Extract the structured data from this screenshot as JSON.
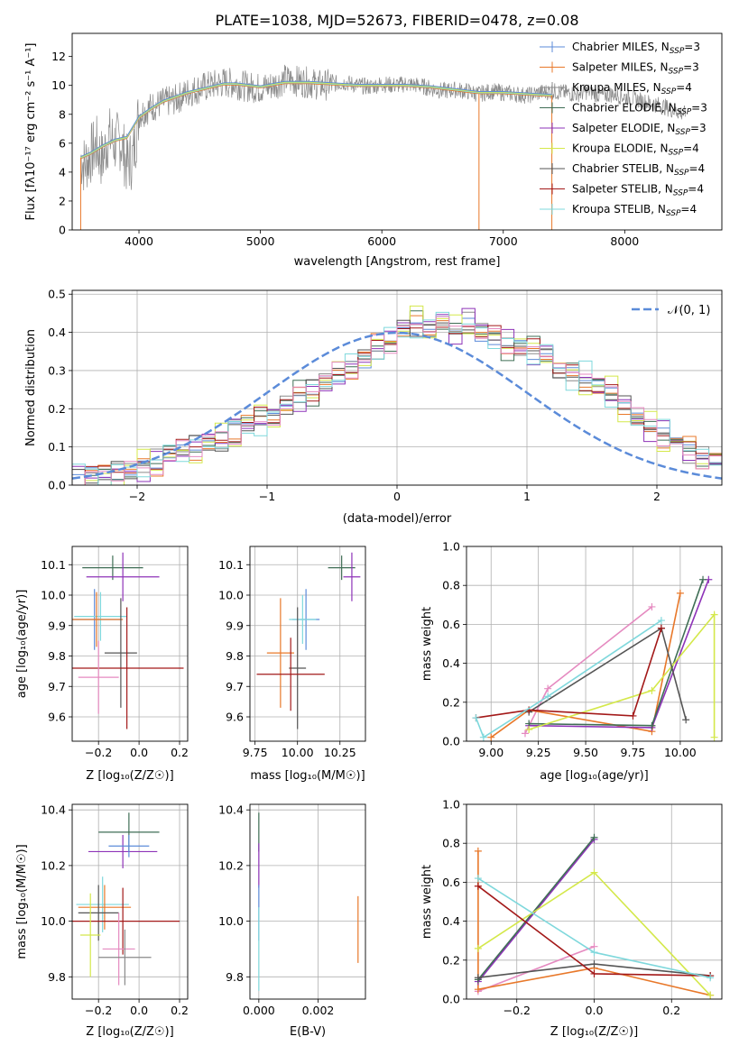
{
  "figure_title": "PLATE=1038, MJD=52673, FIBERID=0478, z=0.08",
  "colors": {
    "Chabrier MILES": "#5b8bd9",
    "Salpeter MILES": "#e8782a",
    "Kroupa MILES": "#8a8a8a",
    "Chabrier ELODIE": "#3f6e55",
    "Salpeter ELODIE": "#8e33b8",
    "Kroupa ELODIE": "#d4e84a",
    "Chabrier STELIB": "#555555",
    "Salpeter STELIB": "#a31919",
    "Kroupa STELIB": "#7fd8dc",
    "extra_pink": "#e58ac0",
    "gaussian": "#5b8bd9"
  },
  "chart_data": [
    {
      "id": "spectrum",
      "type": "line",
      "title": "PLATE=1038, MJD=52673, FIBERID=0478, z=0.08",
      "xlabel": "wavelength [Angstrom, rest frame]",
      "ylabel": "Flux [f_λ 10^-17 erg cm^-2 s^-1 A^-1]",
      "xlim": [
        3450,
        8800
      ],
      "ylim": [
        0,
        13.6
      ],
      "xticks": [
        4000,
        5000,
        6000,
        7000,
        8000
      ],
      "yticks": [
        0,
        2,
        4,
        6,
        8,
        10,
        12
      ],
      "grid": false,
      "legend_position": "right",
      "legend": [
        "Chabrier MILES, N_SSP=3",
        "Salpeter MILES, N_SSP=3",
        "Kroupa MILES, N_SSP=4",
        "Chabrier ELODIE, N_SSP=3",
        "Salpeter ELODIE, N_SSP=3",
        "Kroupa ELODIE, N_SSP=4",
        "Chabrier STELIB, N_SSP=4",
        "Salpeter STELIB, N_SSP=4",
        "Kroupa STELIB, N_SSP=4"
      ],
      "series": [
        {
          "name": "observed spectrum",
          "x": [
            3520,
            3550,
            3600,
            3650,
            3700,
            3750,
            3800,
            3850,
            3900,
            3950,
            4000,
            4100,
            4200,
            4300,
            4400,
            4500,
            4600,
            4700,
            4800,
            4900,
            5000,
            5100,
            5200,
            5300,
            5400,
            5500,
            5600,
            5700,
            5800,
            5900,
            6000,
            6100,
            6200,
            6300,
            6400,
            6500,
            6600,
            6700,
            6800,
            6900,
            7000,
            7100,
            7200,
            7300,
            7400,
            7500,
            7600,
            7700,
            7800,
            7900,
            8000,
            8100,
            8200,
            8300,
            8400,
            8500
          ],
          "y": [
            5.0,
            4.5,
            5.2,
            5.8,
            4.8,
            6.5,
            6.0,
            6.2,
            4.5,
            5.0,
            8.0,
            8.5,
            8.8,
            9.0,
            9.5,
            9.8,
            10.0,
            10.2,
            10.1,
            9.9,
            9.8,
            10.0,
            10.4,
            10.3,
            10.2,
            10.0,
            10.1,
            10.2,
            10.0,
            9.9,
            10.1,
            10.0,
            10.1,
            10.0,
            9.8,
            9.6,
            9.7,
            9.6,
            9.4,
            9.6,
            9.5,
            9.4,
            9.3,
            9.5,
            9.6,
            9.5,
            9.4,
            9.6,
            9.3,
            9.4,
            9.2,
            9.0,
            8.8,
            8.6,
            8.3,
            8.0
          ]
        },
        {
          "name": "models",
          "x": [
            3520,
            3600,
            3700,
            3800,
            3900,
            4000,
            4100,
            4200,
            4300,
            4400,
            4500,
            4600,
            4700,
            4800,
            4900,
            5000,
            5200,
            5400,
            5600,
            5800,
            6000,
            6200,
            6400,
            6600,
            6800,
            7000,
            7200,
            7400
          ],
          "y": [
            5.0,
            5.3,
            5.8,
            6.2,
            6.4,
            7.8,
            8.4,
            8.9,
            9.2,
            9.5,
            9.7,
            9.9,
            10.1,
            10.1,
            10.0,
            9.9,
            10.2,
            10.2,
            10.1,
            10.0,
            10.0,
            10.0,
            9.9,
            9.7,
            9.5,
            9.5,
            9.4,
            9.3
          ]
        }
      ]
    },
    {
      "id": "residuals",
      "type": "histogram",
      "xlabel": "(data-model)/error",
      "ylabel": "Normed distribution",
      "xlim": [
        -2.5,
        2.5
      ],
      "ylim": [
        0,
        0.51
      ],
      "xticks": [
        -2,
        -1,
        0,
        1,
        2
      ],
      "yticks": [
        0.0,
        0.1,
        0.2,
        0.3,
        0.4,
        0.5
      ],
      "grid": true,
      "legend_position": "top-right",
      "legend": [
        "𝒩(0, 1)"
      ],
      "bin_width": 0.1,
      "bins_start": -2.5,
      "series_values": [
        0.02,
        0.025,
        0.03,
        0.035,
        0.04,
        0.05,
        0.06,
        0.08,
        0.09,
        0.1,
        0.11,
        0.12,
        0.14,
        0.16,
        0.17,
        0.19,
        0.21,
        0.23,
        0.25,
        0.27,
        0.29,
        0.31,
        0.33,
        0.36,
        0.38,
        0.41,
        0.42,
        0.4,
        0.43,
        0.41,
        0.42,
        0.4,
        0.39,
        0.37,
        0.36,
        0.35,
        0.33,
        0.3,
        0.29,
        0.28,
        0.26,
        0.24,
        0.21,
        0.18,
        0.15,
        0.13,
        0.11,
        0.09,
        0.07,
        0.06,
        0.04,
        0.035,
        0.03,
        0.025,
        0.02
      ],
      "gaussian": {
        "mean": 0,
        "sigma": 1
      }
    },
    {
      "id": "age_vs_Z",
      "type": "errorbar",
      "xlabel": "Z [log10(Z/Z⊙)]",
      "ylabel": "age [log10(age/yr)]",
      "xlim": [
        -0.33,
        0.24
      ],
      "ylim": [
        9.52,
        10.16
      ],
      "xticks": [
        -0.2,
        0.0,
        0.2
      ],
      "yticks": [
        9.6,
        9.7,
        9.8,
        9.9,
        10.0,
        10.1
      ],
      "grid": true,
      "points": [
        {
          "x": -0.13,
          "xerr": 0.15,
          "y": 10.09,
          "yerr": 0.04
        },
        {
          "x": -0.08,
          "xerr": 0.18,
          "y": 10.06,
          "yerr": 0.08
        },
        {
          "x": -0.22,
          "xerr": 0.13,
          "y": 9.92,
          "yerr": 0.1
        },
        {
          "x": -0.19,
          "xerr": 0.13,
          "y": 9.93,
          "yerr": 0.08
        },
        {
          "x": -0.21,
          "xerr": 0.13,
          "y": 9.92,
          "yerr": 0.09
        },
        {
          "x": -0.09,
          "xerr": 0.08,
          "y": 9.81,
          "yerr": 0.18
        },
        {
          "x": -0.06,
          "xerr": 0.28,
          "y": 9.76,
          "yerr": 0.2
        },
        {
          "x": -0.2,
          "xerr": 0.1,
          "y": 9.73,
          "yerr": 0.12
        }
      ]
    },
    {
      "id": "age_vs_mass",
      "type": "errorbar",
      "xlabel": "mass [log10(M/M⊙)]",
      "xlim": [
        9.72,
        10.4
      ],
      "ylim": [
        9.52,
        10.16
      ],
      "xticks": [
        9.75,
        10.0,
        10.25
      ],
      "yticks": [
        9.6,
        9.7,
        9.8,
        9.9,
        10.0,
        10.1
      ],
      "grid": true,
      "points": [
        {
          "x": 10.26,
          "xerr": 0.08,
          "y": 10.09,
          "yerr": 0.04
        },
        {
          "x": 10.32,
          "xerr": 0.05,
          "y": 10.06,
          "yerr": 0.08
        },
        {
          "x": 10.05,
          "xerr": 0.08,
          "y": 9.92,
          "yerr": 0.1
        },
        {
          "x": 10.03,
          "xerr": 0.08,
          "y": 9.92,
          "yerr": 0.08
        },
        {
          "x": 9.9,
          "xerr": 0.08,
          "y": 9.81,
          "yerr": 0.18
        },
        {
          "x": 10.0,
          "xerr": 0.05,
          "y": 9.76,
          "yerr": 0.2
        },
        {
          "x": 9.96,
          "xerr": 0.2,
          "y": 9.74,
          "yerr": 0.12
        }
      ]
    },
    {
      "id": "weight_vs_age",
      "type": "line",
      "xlabel": "age [log10(age/yr)]",
      "ylabel": "mass weight",
      "xlim": [
        8.87,
        10.22
      ],
      "ylim": [
        0.0,
        1.0
      ],
      "xticks": [
        9.0,
        9.25,
        9.5,
        9.75,
        10.0
      ],
      "yticks": [
        0.0,
        0.2,
        0.4,
        0.6,
        0.8,
        1.0
      ],
      "grid": true,
      "series": [
        {
          "x": [
            9.18,
            9.3,
            9.85
          ],
          "y": [
            0.04,
            0.27,
            0.69
          ]
        },
        {
          "x": [
            9.0,
            9.2,
            9.85,
            10.0
          ],
          "y": [
            0.02,
            0.16,
            0.05,
            0.76
          ]
        },
        {
          "x": [
            9.2,
            9.85,
            10.15
          ],
          "y": [
            0.08,
            0.07,
            0.83
          ]
        },
        {
          "x": [
            9.2,
            9.85,
            10.12
          ],
          "y": [
            0.09,
            0.08,
            0.83
          ]
        },
        {
          "x": [
            9.2,
            9.85,
            10.18,
            10.18
          ],
          "y": [
            0.06,
            0.26,
            0.65,
            0.02
          ]
        },
        {
          "x": [
            9.2,
            9.9,
            10.03
          ],
          "y": [
            0.15,
            0.58,
            0.11
          ]
        },
        {
          "x": [
            8.92,
            9.2,
            9.75,
            9.9
          ],
          "y": [
            0.12,
            0.16,
            0.13,
            0.58
          ]
        },
        {
          "x": [
            8.92,
            8.96,
            9.3,
            9.9
          ],
          "y": [
            0.12,
            0.02,
            0.23,
            0.62
          ]
        }
      ]
    },
    {
      "id": "mass_vs_Z",
      "type": "errorbar",
      "xlabel": "Z [log10(Z/Z⊙)]",
      "ylabel": "mass [log10(M/M⊙)]",
      "xlim": [
        -0.33,
        0.24
      ],
      "ylim": [
        9.72,
        10.42
      ],
      "xticks": [
        -0.2,
        0.0,
        0.2
      ],
      "yticks": [
        9.8,
        10.0,
        10.2,
        10.4
      ],
      "grid": true,
      "points": [
        {
          "x": -0.05,
          "xerr": 0.15,
          "y": 10.32,
          "yerr": 0.07
        },
        {
          "x": -0.08,
          "xerr": 0.17,
          "y": 10.25,
          "yerr": 0.06
        },
        {
          "x": -0.05,
          "xerr": 0.1,
          "y": 10.27,
          "yerr": 0.04
        },
        {
          "x": -0.18,
          "xerr": 0.13,
          "y": 10.06,
          "yerr": 0.1
        },
        {
          "x": -0.17,
          "xerr": 0.13,
          "y": 10.05,
          "yerr": 0.08
        },
        {
          "x": -0.2,
          "xerr": 0.1,
          "y": 10.03,
          "yerr": 0.1
        },
        {
          "x": -0.08,
          "xerr": 0.28,
          "y": 10.0,
          "yerr": 0.12
        },
        {
          "x": -0.1,
          "xerr": 0.08,
          "y": 9.9,
          "yerr": 0.13
        },
        {
          "x": -0.07,
          "xerr": 0.13,
          "y": 9.87,
          "yerr": 0.1
        },
        {
          "x": -0.24,
          "xerr": 0.05,
          "y": 9.95,
          "yerr": 0.15
        }
      ]
    },
    {
      "id": "mass_vs_EBV",
      "type": "errorbar",
      "xlabel": "E(B-V)",
      "xlim": [
        -0.0003,
        0.0036
      ],
      "ylim": [
        9.72,
        10.42
      ],
      "xticks": [
        0.0,
        0.002
      ],
      "yticks": [
        9.8,
        10.0,
        10.2,
        10.4
      ],
      "grid": true,
      "points": [
        {
          "x": 0.0,
          "y": 10.32,
          "yerr": 0.07
        },
        {
          "x": 0.0,
          "y": 10.2,
          "yerr": 0.08
        },
        {
          "x": 0.0,
          "y": 10.03,
          "yerr": 0.1
        },
        {
          "x": 0.0,
          "y": 9.9,
          "yerr": 0.15
        },
        {
          "x": 0.00335,
          "y": 9.97,
          "yerr": 0.12
        }
      ]
    },
    {
      "id": "weight_vs_Z",
      "type": "line",
      "xlabel": "Z [log10(Z/Z⊙)]",
      "ylabel": "mass weight",
      "xlim": [
        -0.33,
        0.33
      ],
      "ylim": [
        0.0,
        1.0
      ],
      "xticks": [
        -0.2,
        0.0,
        0.2
      ],
      "yticks": [
        0.0,
        0.2,
        0.4,
        0.6,
        0.8,
        1.0
      ],
      "grid": true,
      "series": [
        {
          "x": [
            -0.3,
            0.0
          ],
          "y": [
            0.04,
            0.27
          ]
        },
        {
          "x": [
            -0.3,
            -0.3,
            0.0,
            0.3
          ],
          "y": [
            0.76,
            0.05,
            0.16,
            0.02
          ]
        },
        {
          "x": [
            -0.3,
            0.0
          ],
          "y": [
            0.09,
            0.82
          ]
        },
        {
          "x": [
            -0.3,
            0.0
          ],
          "y": [
            0.1,
            0.83
          ]
        },
        {
          "x": [
            -0.3,
            0.0,
            0.3
          ],
          "y": [
            0.26,
            0.65,
            0.02
          ]
        },
        {
          "x": [
            -0.3,
            0.0,
            0.3
          ],
          "y": [
            0.11,
            0.18,
            0.12
          ]
        },
        {
          "x": [
            -0.3,
            0.0,
            0.3
          ],
          "y": [
            0.58,
            0.13,
            0.12
          ]
        },
        {
          "x": [
            -0.3,
            0.0,
            0.3
          ],
          "y": [
            0.62,
            0.24,
            0.11
          ]
        }
      ]
    }
  ]
}
